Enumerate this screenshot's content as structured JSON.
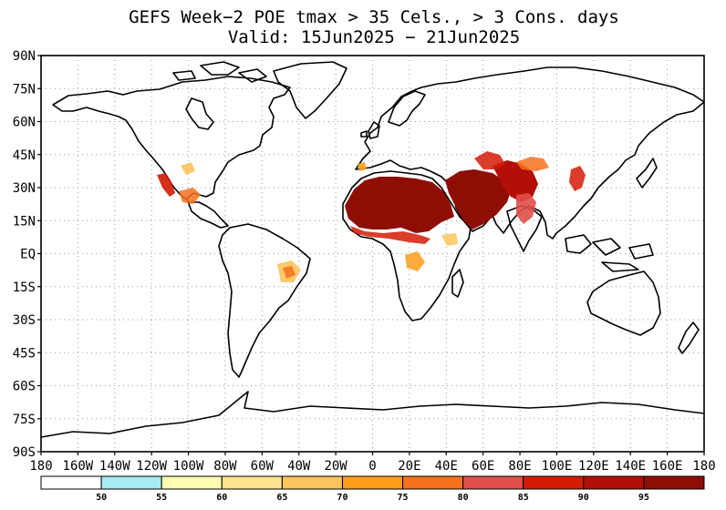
{
  "title": {
    "line1": "GEFS Week−2 POE tmax > 35 Cels., > 3 Cons. days",
    "line2": "Valid: 15Jun2025 − 21Jun2025"
  },
  "lat_labels": [
    "90N",
    "75N",
    "60N",
    "45N",
    "30N",
    "15N",
    "EQ",
    "15S",
    "30S",
    "45S",
    "60S",
    "75S",
    "90S"
  ],
  "lon_labels": [
    "180",
    "160W",
    "140W",
    "120W",
    "100W",
    "80W",
    "60W",
    "40W",
    "20W",
    "0",
    "20E",
    "40E",
    "60E",
    "80E",
    "100E",
    "120E",
    "140E",
    "160E",
    "180"
  ],
  "colorbar": {
    "colors": [
      "#ffffff",
      "#a6ecf2",
      "#fffbb0",
      "#ffe28c",
      "#fcc45c",
      "#fd9d1a",
      "#f6711d",
      "#e04e4a",
      "#d31b06",
      "#b30f06",
      "#8e0e05"
    ],
    "labels": [
      "50",
      "55",
      "60",
      "65",
      "70",
      "75",
      "80",
      "85",
      "90",
      "95"
    ]
  },
  "colors": {
    "frame": "#000000",
    "grid": "#9a9a9a",
    "land_outline": "#000000"
  }
}
